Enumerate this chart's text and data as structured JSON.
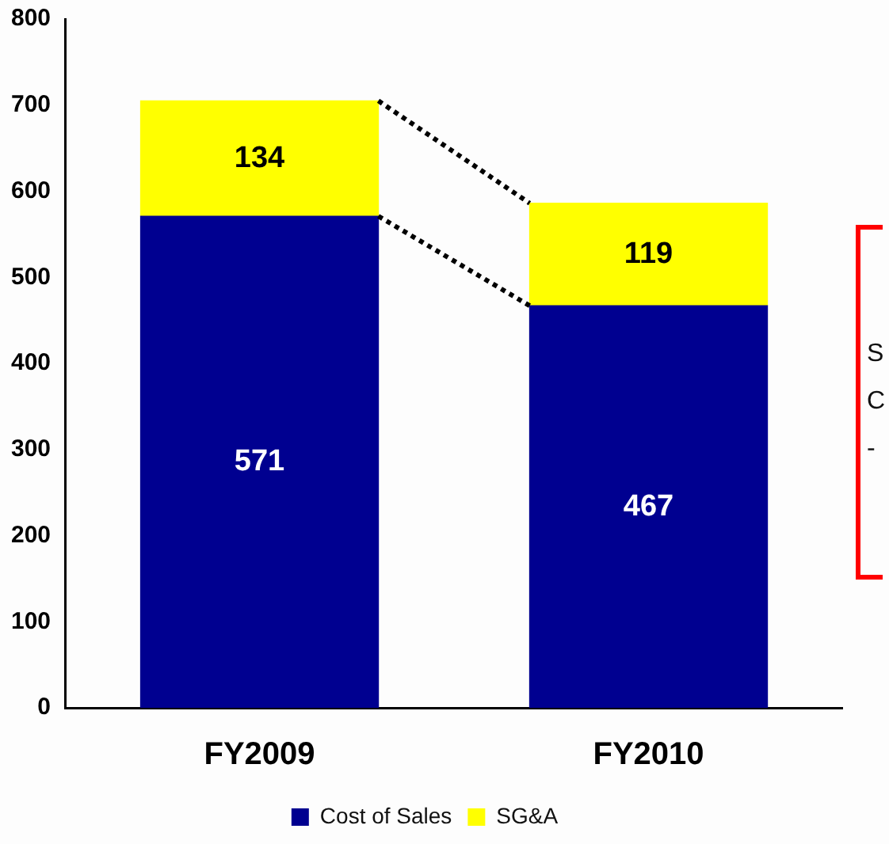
{
  "chart_data": {
    "type": "bar",
    "stacked": true,
    "categories": [
      "FY2009",
      "FY2010"
    ],
    "series": [
      {
        "name": "Cost of Sales",
        "color": "#000090",
        "values": [
          571,
          467
        ]
      },
      {
        "name": "SG&A",
        "color": "#ffff00",
        "values": [
          134,
          119
        ]
      }
    ],
    "ylim": [
      0,
      800
    ],
    "yticks": [
      0,
      100,
      200,
      300,
      400,
      500,
      600,
      700,
      800
    ],
    "grid": false,
    "legend": "bottom",
    "data_labels": true,
    "annotations": [
      "S",
      "C",
      "-"
    ]
  }
}
